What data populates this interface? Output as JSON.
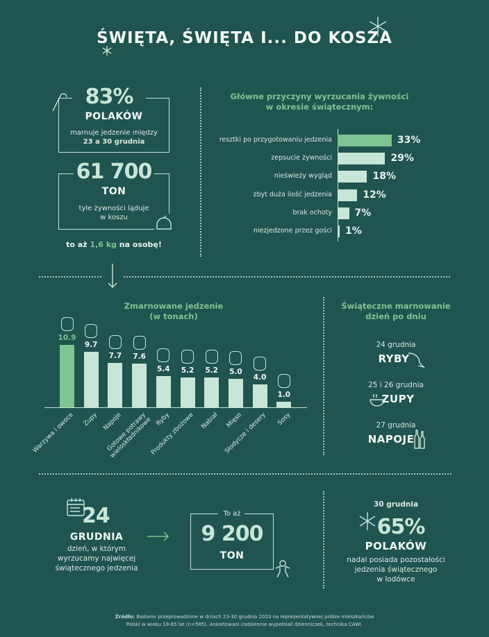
{
  "title": "ŚWIĘTA, ŚWIĘTA I... DO KOSZA",
  "stat1": {
    "value": "83%",
    "label": "POLAKÓW",
    "desc1": "marnuje jedzenie między",
    "desc2": "23 a 30 grudnia"
  },
  "stat2": {
    "value": "61 700",
    "label": "TON",
    "desc1": "tyle żywności ląduje",
    "desc2": "w koszu"
  },
  "per_person": {
    "pre": "to aż ",
    "value": "1,6 kg",
    "post": " na osobę!"
  },
  "colors": {
    "background": "#1f5450",
    "accent": "#7fc493",
    "bar": "#c8e6d8"
  },
  "chart_data": [
    {
      "type": "bar",
      "orientation": "horizontal",
      "title_line1": "Główne przyczyny wyrzucania żywności",
      "title_line2": "w okresie świątecznym:",
      "categories": [
        "resztki po przygotowaniu jedzenia",
        "zepsucie żywności",
        "nieświeży wygląd",
        "zbyt duża ilość jedzenia",
        "brak ochoty",
        "niezjedzone przez gości"
      ],
      "values": [
        33,
        29,
        18,
        12,
        7,
        1
      ],
      "labels": [
        "33%",
        "29%",
        "18%",
        "12%",
        "7%",
        "1%"
      ],
      "unit": "%"
    },
    {
      "type": "bar",
      "orientation": "vertical",
      "title_line1": "Zmarnowane jedzenie",
      "title_line2": "(w tonach)",
      "categories": [
        "Warzywa i owoce",
        "Zupy",
        "Napoje",
        "Gotowe potrawy wieloskładnikowe",
        "Ryby",
        "Produkty zbożowe",
        "Nabiał",
        "Mięso",
        "Słodycze i desery",
        "Sosy"
      ],
      "values": [
        10.9,
        9.7,
        7.7,
        7.6,
        5.4,
        5.2,
        5.2,
        5.0,
        4.0,
        1.0
      ],
      "labels": [
        "10.9",
        "9.7",
        "7.7",
        "7.6",
        "5.4",
        "5.2",
        "5.2",
        "5.0",
        "4.0",
        "1.0"
      ],
      "icons": [
        "carrot-icon",
        "soup-bowl-icon",
        "bottles-icon",
        "dish-icon",
        "fish-icon",
        "grain-bowl-icon",
        "cheese-icon",
        "drumstick-icon",
        "muffin-icon",
        "jar-icon"
      ]
    }
  ],
  "daily": {
    "title1": "Świąteczne marnowanie",
    "title2": "dzień po dniu",
    "items": [
      {
        "date": "24 grudnia",
        "food": "RYBY"
      },
      {
        "date": "25 i 26 grudnia",
        "food": "ZUPY"
      },
      {
        "date": "27 grudnia",
        "food": "NAPOJE"
      }
    ]
  },
  "peak": {
    "value": "24",
    "label": "GRUDNIA",
    "desc1": "dzień, w którym",
    "desc2": "wyrzucamy najwięcej",
    "desc3": "świątecznego jedzenia"
  },
  "peak_amount": {
    "pre": "To aż",
    "value": "9 200",
    "label": "TON"
  },
  "leftovers": {
    "date": "30 grudnia",
    "value": "65%",
    "label": "POLAKÓW",
    "desc1": "nadal posiada pozostałości",
    "desc2": "jedzenia świątecznego",
    "desc3": "w lodówce"
  },
  "source": {
    "label": "Źródło:",
    "text1": " Badanie przeprowadzone w dniach 23-30 grudnia 2023 na reprezentatywnej próbie mieszkańców",
    "text2": "Polski w wieku 18-65 lat (n=585). Ankietowani codziennie wypełniali dzienniczek, technika CAWI."
  }
}
